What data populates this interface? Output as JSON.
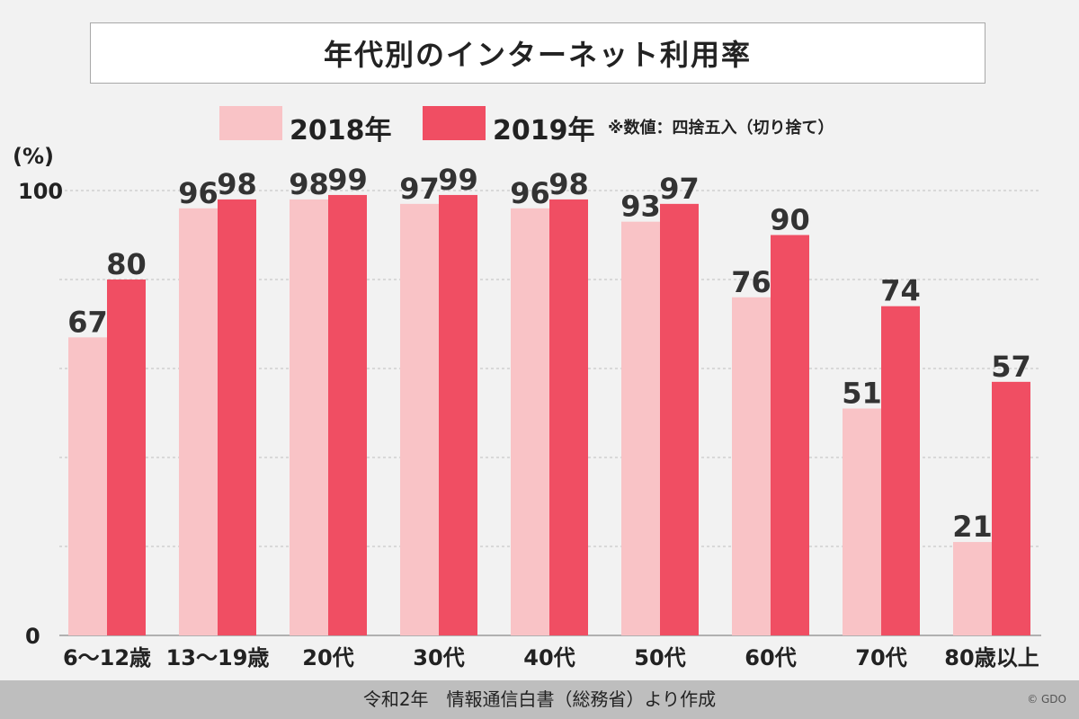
{
  "chart_data": {
    "type": "bar",
    "title": "年代別のインターネット利用率",
    "ylabel": "(%)",
    "ylim": [
      0,
      100
    ],
    "yticks": [
      "100",
      "0"
    ],
    "note": "※数値：四捨五入（切り捨て）",
    "categories": [
      "6～12歳",
      "13～19歳",
      "20代",
      "30代",
      "40代",
      "50代",
      "60代",
      "70代",
      "80歳以上"
    ],
    "series": [
      {
        "name": "2018年",
        "color": "#f9c3c6",
        "values": [
          67,
          96,
          98,
          97,
          96,
          93,
          76,
          51,
          21
        ]
      },
      {
        "name": "2019年",
        "color": "#f04e63",
        "values": [
          80,
          98,
          99,
          99,
          98,
          97,
          90,
          74,
          57
        ]
      }
    ],
    "grid": true,
    "legend_position": "top"
  },
  "footer": {
    "source": "令和2年　情報通信白書（総務省）より作成",
    "credit": "© GDO"
  }
}
